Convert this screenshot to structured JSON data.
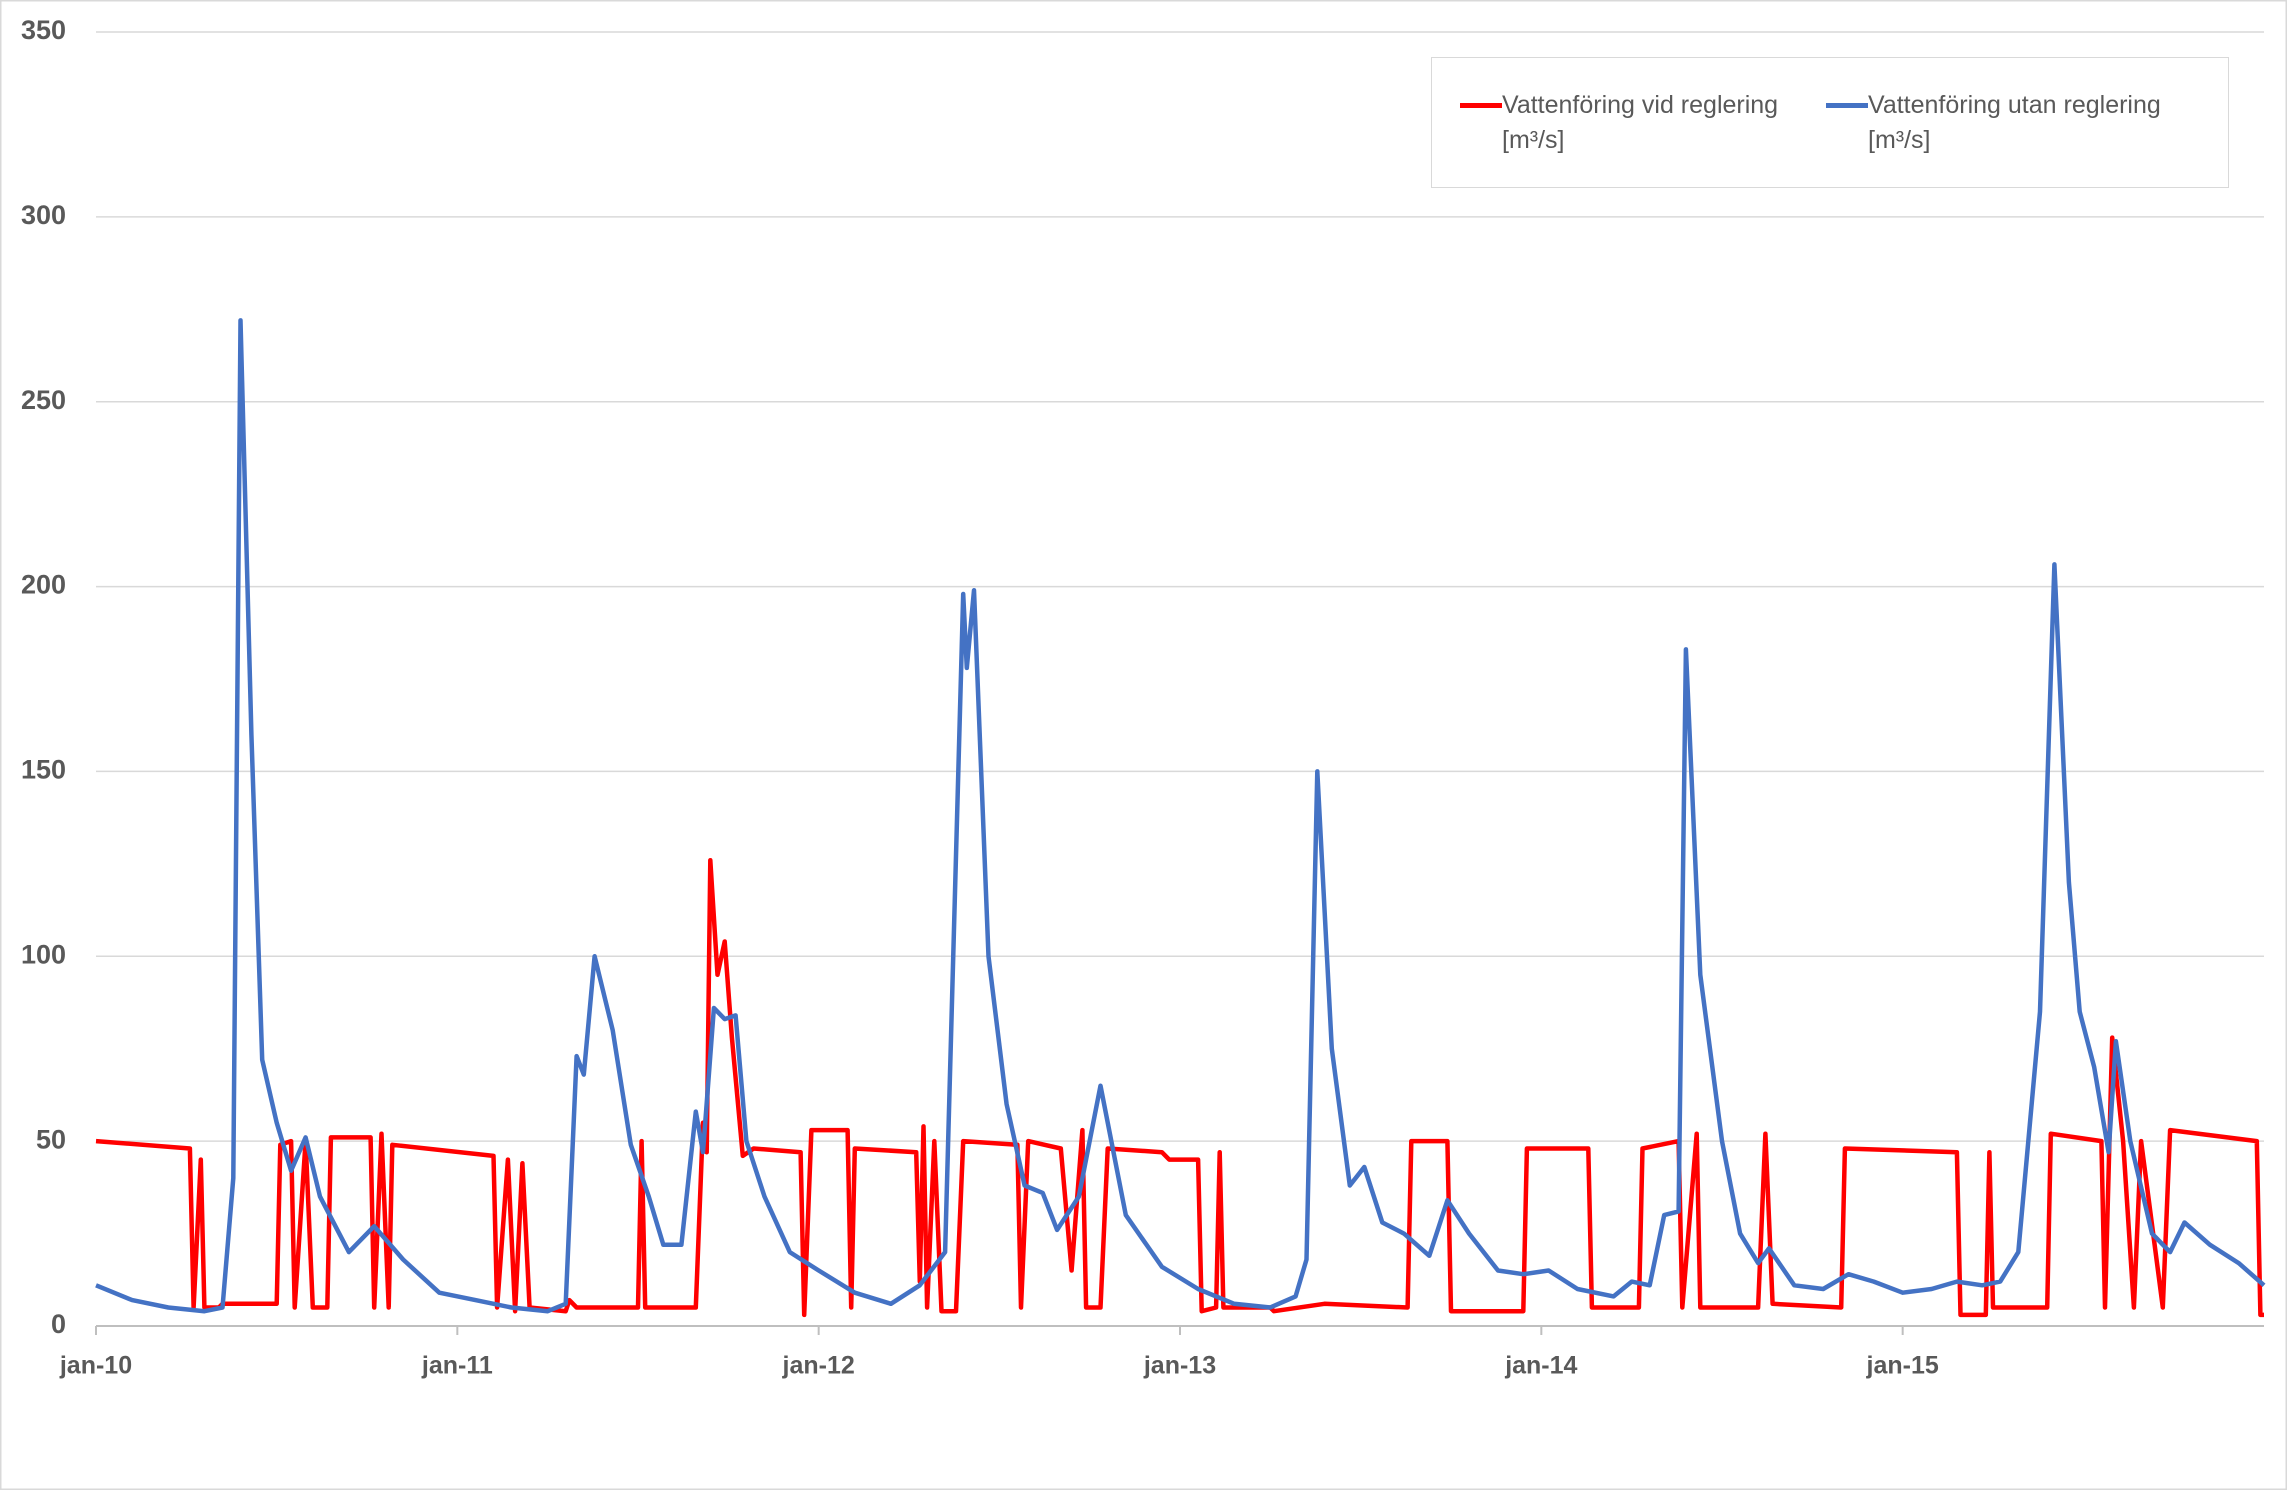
{
  "chart_data": {
    "type": "line",
    "xlim": [
      2010,
      2016
    ],
    "xticks": [
      {
        "value": 2010,
        "label": "jan-10"
      },
      {
        "value": 2011,
        "label": "jan-11"
      },
      {
        "value": 2012,
        "label": "jan-12"
      },
      {
        "value": 2013,
        "label": "jan-13"
      },
      {
        "value": 2014,
        "label": "jan-14"
      },
      {
        "value": 2015,
        "label": "jan-15"
      }
    ],
    "ylim": [
      0,
      350
    ],
    "yticks": [
      0,
      50,
      100,
      150,
      200,
      250,
      300,
      350
    ],
    "grid": true,
    "legend": "top-right",
    "series": [
      {
        "name": "Vattenföring vid reglering [m³/s]",
        "color": "#ff0000",
        "x": [
          2010.0,
          2010.26,
          2010.27,
          2010.29,
          2010.3,
          2010.34,
          2010.35,
          2010.5,
          2010.51,
          2010.54,
          2010.55,
          2010.58,
          2010.6,
          2010.64,
          2010.65,
          2010.76,
          2010.77,
          2010.79,
          2010.81,
          2010.82,
          2011.1,
          2011.11,
          2011.14,
          2011.16,
          2011.18,
          2011.2,
          2011.3,
          2011.31,
          2011.33,
          2011.5,
          2011.51,
          2011.52,
          2011.66,
          2011.68,
          2011.69,
          2011.7,
          2011.72,
          2011.74,
          2011.76,
          2011.79,
          2011.82,
          2011.95,
          2011.96,
          2011.98,
          2012.08,
          2012.09,
          2012.1,
          2012.27,
          2012.28,
          2012.29,
          2012.3,
          2012.32,
          2012.34,
          2012.38,
          2012.4,
          2012.55,
          2012.56,
          2012.58,
          2012.67,
          2012.7,
          2012.73,
          2012.74,
          2012.78,
          2012.8,
          2012.95,
          2012.97,
          2013.05,
          2013.06,
          2013.1,
          2013.11,
          2013.12,
          2013.25,
          2013.26,
          2013.4,
          2013.63,
          2013.64,
          2013.74,
          2013.75,
          2013.95,
          2013.96,
          2014.13,
          2014.14,
          2014.27,
          2014.28,
          2014.38,
          2014.39,
          2014.43,
          2014.44,
          2014.6,
          2014.62,
          2014.64,
          2014.83,
          2014.84,
          2015.15,
          2015.16,
          2015.23,
          2015.24,
          2015.25,
          2015.4,
          2015.41,
          2015.55,
          2015.56,
          2015.58,
          2015.61,
          2015.64,
          2015.66,
          2015.72,
          2015.74,
          2015.98,
          2015.99,
          2016.0
        ],
        "values": [
          50,
          48,
          5,
          45,
          5,
          5,
          6,
          6,
          49,
          50,
          5,
          50,
          5,
          5,
          51,
          51,
          5,
          52,
          5,
          49,
          46,
          5,
          45,
          4,
          44,
          5,
          4,
          7,
          5,
          5,
          50,
          5,
          5,
          55,
          47,
          126,
          95,
          104,
          78,
          46,
          48,
          47,
          3,
          53,
          53,
          5,
          48,
          47,
          12,
          54,
          5,
          50,
          4,
          4,
          50,
          49,
          5,
          50,
          48,
          15,
          53,
          5,
          5,
          48,
          47,
          45,
          45,
          4,
          5,
          47,
          5,
          5,
          4,
          6,
          5,
          50,
          50,
          4,
          4,
          48,
          48,
          5,
          5,
          48,
          50,
          5,
          52,
          5,
          5,
          52,
          6,
          5,
          48,
          47,
          3,
          3,
          47,
          5,
          5,
          52,
          50,
          5,
          78,
          50,
          5,
          50,
          5,
          53,
          50,
          3,
          3
        ]
      },
      {
        "name": "Vattenföring utan reglering [m³/s]",
        "color": "#4472c4",
        "x": [
          2010.0,
          2010.1,
          2010.2,
          2010.3,
          2010.35,
          2010.38,
          2010.4,
          2010.43,
          2010.46,
          2010.5,
          2010.54,
          2010.58,
          2010.62,
          2010.7,
          2010.77,
          2010.85,
          2010.95,
          2011.05,
          2011.15,
          2011.25,
          2011.3,
          2011.33,
          2011.35,
          2011.38,
          2011.43,
          2011.48,
          2011.53,
          2011.57,
          2011.62,
          2011.66,
          2011.68,
          2011.71,
          2011.74,
          2011.77,
          2011.8,
          2011.85,
          2011.92,
          2012.0,
          2012.1,
          2012.2,
          2012.28,
          2012.35,
          2012.4,
          2012.41,
          2012.43,
          2012.47,
          2012.52,
          2012.57,
          2012.62,
          2012.66,
          2012.72,
          2012.78,
          2012.85,
          2012.95,
          2013.05,
          2013.15,
          2013.25,
          2013.32,
          2013.35,
          2013.38,
          2013.42,
          2013.47,
          2013.51,
          2013.56,
          2013.62,
          2013.69,
          2013.74,
          2013.8,
          2013.88,
          2013.95,
          2014.02,
          2014.1,
          2014.2,
          2014.25,
          2014.3,
          2014.34,
          2014.38,
          2014.4,
          2014.44,
          2014.5,
          2014.55,
          2014.6,
          2014.63,
          2014.7,
          2014.78,
          2014.85,
          2014.92,
          2015.0,
          2015.08,
          2015.15,
          2015.22,
          2015.27,
          2015.32,
          2015.38,
          2015.42,
          2015.46,
          2015.49,
          2015.53,
          2015.57,
          2015.59,
          2015.63,
          2015.69,
          2015.74,
          2015.78,
          2015.85,
          2015.93,
          2016.0
        ],
        "values": [
          11,
          7,
          5,
          4,
          5,
          40,
          272,
          160,
          72,
          55,
          42,
          51,
          35,
          20,
          27,
          18,
          9,
          7,
          5,
          4,
          6,
          73,
          68,
          100,
          80,
          49,
          35,
          22,
          22,
          58,
          47,
          86,
          83,
          84,
          50,
          35,
          20,
          15,
          9,
          6,
          11,
          20,
          198,
          178,
          199,
          100,
          60,
          38,
          36,
          26,
          35,
          65,
          30,
          16,
          10,
          6,
          5,
          8,
          18,
          150,
          75,
          38,
          43,
          28,
          25,
          19,
          34,
          25,
          15,
          14,
          15,
          10,
          8,
          12,
          11,
          30,
          31,
          183,
          95,
          50,
          25,
          17,
          21,
          11,
          10,
          14,
          12,
          9,
          10,
          12,
          11,
          12,
          20,
          85,
          206,
          120,
          85,
          70,
          47,
          77,
          50,
          25,
          20,
          28,
          22,
          17,
          11
        ]
      }
    ]
  }
}
